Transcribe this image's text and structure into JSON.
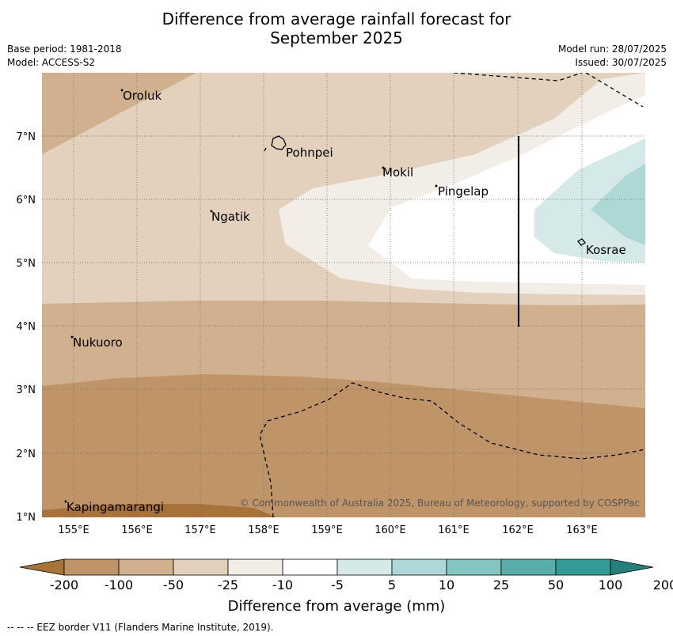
{
  "title_line1": "Difference from average rainfall forecast for",
  "title_line2": "September 2025",
  "meta": {
    "base_period": "Base period: 1981-2018",
    "model": "Model: ACCESS-S2",
    "model_run": "Model run: 28/07/2025",
    "issued": "Issued: 30/07/2025"
  },
  "axes": {
    "lon_labels": [
      "155°E",
      "156°E",
      "157°E",
      "158°E",
      "159°E",
      "160°E",
      "161°E",
      "162°E",
      "163°E"
    ],
    "lat_labels": [
      "7°N",
      "6°N",
      "5°N",
      "4°N",
      "3°N",
      "2°N",
      "1°N"
    ]
  },
  "places": {
    "oroluk": "Oroluk",
    "pohnpei": "Pohnpei",
    "mokil": "Mokil",
    "pingelap": "Pingelap",
    "ngatik": "Ngatik",
    "kosrae": "Kosrae",
    "nukuoro": "Nukuoro",
    "kapingamarangi": "Kapingamarangi"
  },
  "copyright": "© Commonwealth of Australia 2025, Bureau of Meteorology, supported by COSPPac",
  "colorbar": {
    "title": "Difference from average (mm)",
    "labels": [
      "-200",
      "-100",
      "-50",
      "-25",
      "-10",
      "-5",
      "5",
      "10",
      "25",
      "50",
      "100",
      "200"
    ],
    "colors": [
      "#a8733a",
      "#c09469",
      "#d1b08f",
      "#e3d0bd",
      "#f2ede6",
      "#ffffff",
      "#d4e9e8",
      "#aed8d6",
      "#84c4c1",
      "#5aadaa",
      "#339a97",
      "#267f7b"
    ]
  },
  "footer": "--  --  -- EEZ border V11 (Flanders Marine Institute, 2019)."
}
